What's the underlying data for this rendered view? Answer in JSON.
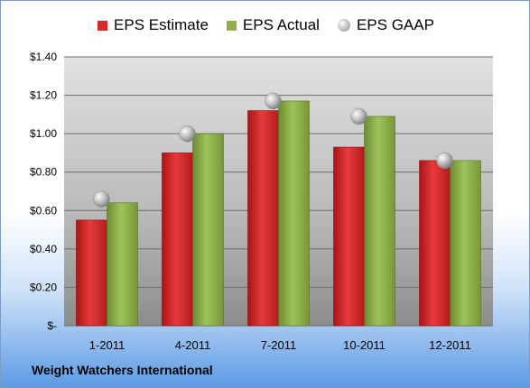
{
  "chart_data": {
    "type": "bar",
    "categories": [
      "1-2011",
      "4-2011",
      "7-2011",
      "10-2011",
      "12-2011"
    ],
    "series": [
      {
        "name": "EPS Estimate",
        "kind": "bar",
        "color": "#d42a2a",
        "values": [
          0.55,
          0.9,
          1.12,
          0.93,
          0.86
        ]
      },
      {
        "name": "EPS Actual",
        "kind": "bar",
        "color": "#8fb04c",
        "values": [
          0.64,
          1.0,
          1.17,
          1.09,
          0.86
        ]
      },
      {
        "name": "EPS GAAP",
        "kind": "marker",
        "color": "#b9b9b9",
        "values": [
          0.66,
          1.0,
          1.17,
          1.09,
          0.86
        ]
      }
    ],
    "ylim": [
      0,
      1.4
    ],
    "yticks": [
      0,
      0.2,
      0.4,
      0.6,
      0.8,
      1.0,
      1.2,
      1.4
    ],
    "ytick_labels": [
      "$-",
      "$0.20",
      "$0.40",
      "$0.60",
      "$0.80",
      "$1.00",
      "$1.20",
      "$1.40"
    ],
    "grid": true,
    "legend_position": "top-center",
    "footer": "Weight Watchers International"
  }
}
